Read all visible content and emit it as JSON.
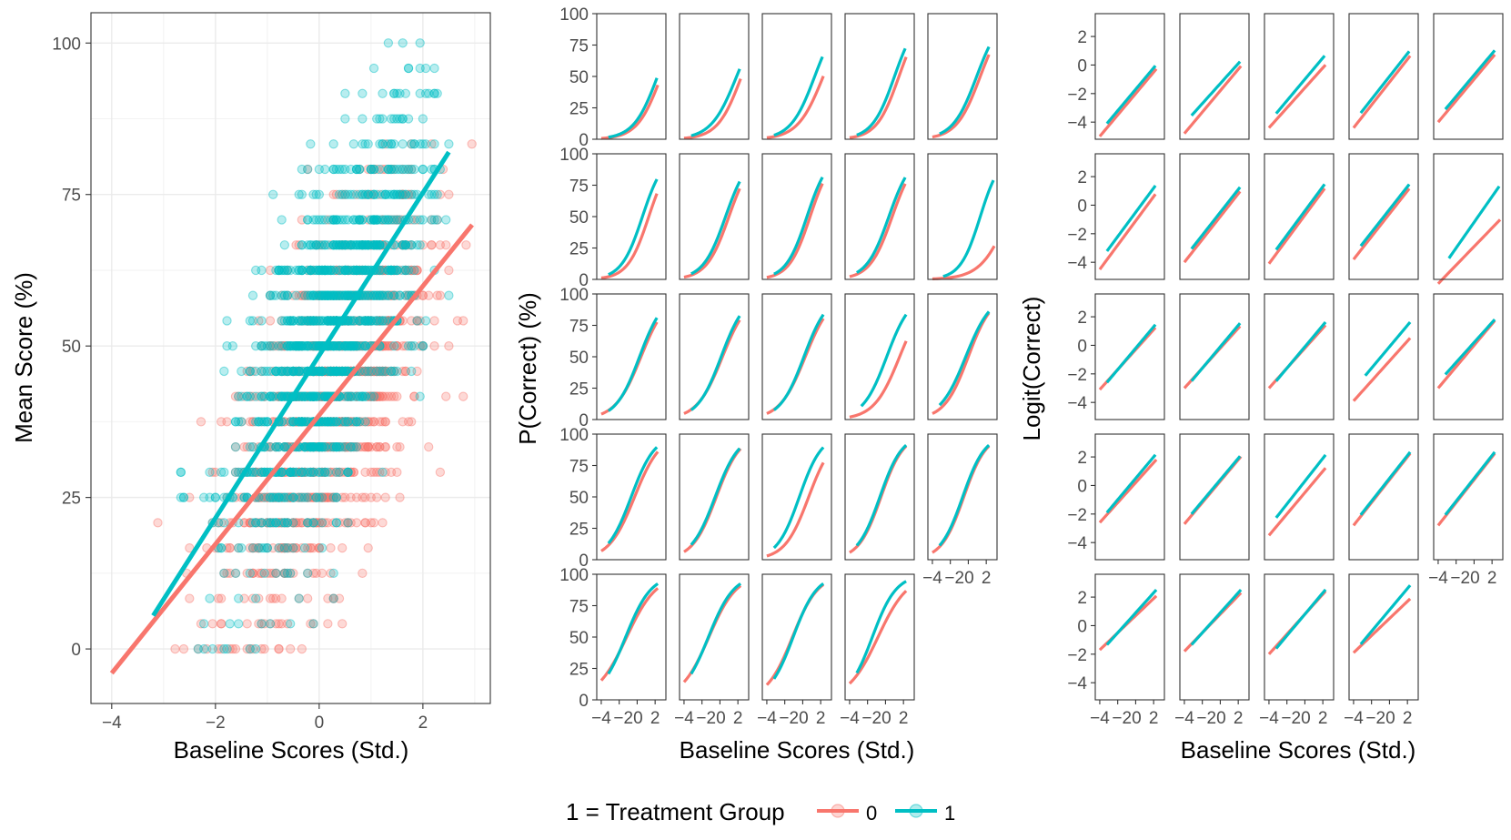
{
  "legend": {
    "title": "1 = Treatment Group",
    "entries": [
      {
        "label": "0",
        "color": "#F8766D"
      },
      {
        "label": "1",
        "color": "#00BFC4"
      }
    ]
  },
  "chart_data": [
    {
      "type": "scatter",
      "panel": "left",
      "xlabel": "Baseline Scores (Std.)",
      "ylabel": "Mean Score (%)",
      "xlim": [
        -4.4,
        3.3
      ],
      "ylim": [
        -9,
        105
      ],
      "xticks": [
        "-4",
        "-2",
        "0",
        "2"
      ],
      "xtick_values": [
        -4,
        -2,
        0,
        2
      ],
      "yticks": [
        "0",
        "25",
        "50",
        "75",
        "100"
      ],
      "ytick_values": [
        0,
        25,
        50,
        75,
        100
      ],
      "grid": true,
      "points_note": "Dense semi-transparent points at discrete score levels (multiples of ~4.17%), control spread roughly x -4 to 3, treatment roughly x -3.2 to 2.5",
      "fit_lines": [
        {
          "name": "0",
          "color": "#F8766D",
          "x": [
            -4.0,
            2.95
          ],
          "y": [
            -4,
            70
          ]
        },
        {
          "name": "1",
          "color": "#00BFC4",
          "x": [
            -3.2,
            2.5
          ],
          "y": [
            5.5,
            82
          ]
        }
      ]
    },
    {
      "type": "line",
      "panel": "middle",
      "xlabel": "Baseline Scores (Std.)",
      "ylabel": "P(Correct) (%)",
      "facets": 24,
      "layout": "5 columns x 5 rows (last row has 4 panels)",
      "xlim": [
        -4.5,
        3.2
      ],
      "ylim": [
        0,
        100
      ],
      "xticks": [
        "-4",
        "-2",
        "0",
        "2"
      ],
      "xtick_values": [
        -4,
        -2,
        0,
        2
      ],
      "yticks": [
        "0",
        "25",
        "50",
        "75",
        "100"
      ],
      "ytick_values": [
        0,
        25,
        50,
        75,
        100
      ],
      "series_names": [
        "0",
        "1"
      ],
      "curves": {
        "0": [
          {
            "a": -2.0,
            "b": 0.75,
            "x0": -4.0,
            "x1": 2.3
          },
          {
            "a": -1.8,
            "b": 0.75,
            "x0": -4.0,
            "x1": 2.3
          },
          {
            "a": -1.6,
            "b": 0.7,
            "x0": -4.0,
            "x1": 2.3
          },
          {
            "a": -1.2,
            "b": 0.8,
            "x0": -4.0,
            "x1": 2.3
          },
          {
            "a": -1.0,
            "b": 0.75,
            "x0": -4.0,
            "x1": 2.3
          },
          {
            "a": -1.1,
            "b": 0.85,
            "x0": -4.0,
            "x1": 2.2
          },
          {
            "a": -0.8,
            "b": 0.8,
            "x0": -4.0,
            "x1": 2.2
          },
          {
            "a": -0.7,
            "b": 0.85,
            "x0": -4.0,
            "x1": 2.2
          },
          {
            "a": -0.6,
            "b": 0.8,
            "x0": -4.0,
            "x1": 2.2
          },
          {
            "a": -2.9,
            "b": 0.65,
            "x0": -4.0,
            "x1": 2.9
          },
          {
            "a": -0.3,
            "b": 0.7,
            "x0": -4.0,
            "x1": 2.2
          },
          {
            "a": -0.2,
            "b": 0.7,
            "x0": -4.0,
            "x1": 2.2
          },
          {
            "a": -0.2,
            "b": 0.7,
            "x0": -4.0,
            "x1": 2.3
          },
          {
            "a": -1.1,
            "b": 0.7,
            "x0": -4.0,
            "x1": 2.3
          },
          {
            "a": 0.0,
            "b": 0.75,
            "x0": -4.0,
            "x1": 2.3
          },
          {
            "a": 0.2,
            "b": 0.7,
            "x0": -4.0,
            "x1": 2.3
          },
          {
            "a": 0.3,
            "b": 0.75,
            "x0": -4.0,
            "x1": 2.3
          },
          {
            "a": -0.5,
            "b": 0.75,
            "x0": -4.0,
            "x1": 2.3
          },
          {
            "a": 0.4,
            "b": 0.8,
            "x0": -4.0,
            "x1": 2.3
          },
          {
            "a": 0.4,
            "b": 0.8,
            "x0": -4.0,
            "x1": 2.3
          },
          {
            "a": 0.7,
            "b": 0.6,
            "x0": -4.0,
            "x1": 2.3
          },
          {
            "a": 0.8,
            "b": 0.65,
            "x0": -4.0,
            "x1": 2.3
          },
          {
            "a": 0.8,
            "b": 0.7,
            "x0": -4.0,
            "x1": 2.3
          },
          {
            "a": 0.5,
            "b": 0.6,
            "x0": -4.0,
            "x1": 2.3
          }
        ],
        "1": [
          {
            "a": -1.7,
            "b": 0.75,
            "x0": -3.2,
            "x1": 2.2
          },
          {
            "a": -1.3,
            "b": 0.7,
            "x0": -3.2,
            "x1": 2.2
          },
          {
            "a": -1.0,
            "b": 0.75,
            "x0": -3.2,
            "x1": 2.2
          },
          {
            "a": -0.8,
            "b": 0.8,
            "x0": -3.2,
            "x1": 2.2
          },
          {
            "a": -0.7,
            "b": 0.75,
            "x0": -3.2,
            "x1": 2.3
          },
          {
            "a": -0.5,
            "b": 0.85,
            "x0": -3.2,
            "x1": 2.2
          },
          {
            "a": -0.5,
            "b": 0.8,
            "x0": -3.2,
            "x1": 2.2
          },
          {
            "a": -0.4,
            "b": 0.85,
            "x0": -3.2,
            "x1": 2.2
          },
          {
            "a": -0.3,
            "b": 0.8,
            "x0": -3.2,
            "x1": 2.2
          },
          {
            "a": -1.2,
            "b": 0.9,
            "x0": -2.8,
            "x1": 2.8
          },
          {
            "a": -0.2,
            "b": 0.75,
            "x0": -3.2,
            "x1": 2.2
          },
          {
            "a": -0.1,
            "b": 0.75,
            "x0": -3.2,
            "x1": 2.2
          },
          {
            "a": -0.1,
            "b": 0.75,
            "x0": -3.2,
            "x1": 2.3
          },
          {
            "a": -0.1,
            "b": 0.75,
            "x0": -2.7,
            "x1": 2.3
          },
          {
            "a": 0.2,
            "b": 0.7,
            "x0": -3.2,
            "x1": 2.3
          },
          {
            "a": 0.5,
            "b": 0.75,
            "x0": -3.2,
            "x1": 2.2
          },
          {
            "a": 0.4,
            "b": 0.75,
            "x0": -3.2,
            "x1": 2.2
          },
          {
            "a": 0.3,
            "b": 0.8,
            "x0": -3.2,
            "x1": 2.3
          },
          {
            "a": 0.5,
            "b": 0.8,
            "x0": -3.2,
            "x1": 2.3
          },
          {
            "a": 0.5,
            "b": 0.8,
            "x0": -3.2,
            "x1": 2.3
          },
          {
            "a": 0.9,
            "b": 0.7,
            "x0": -3.2,
            "x1": 2.3
          },
          {
            "a": 0.9,
            "b": 0.7,
            "x0": -3.2,
            "x1": 2.3
          },
          {
            "a": 0.8,
            "b": 0.75,
            "x0": -3.2,
            "x1": 2.3
          },
          {
            "a": 1.1,
            "b": 0.75,
            "x0": -3.2,
            "x1": 2.3
          }
        ]
      }
    },
    {
      "type": "line",
      "panel": "right",
      "xlabel": "Baseline Scores (Std.)",
      "ylabel": "Logit(Correct)",
      "facets": 24,
      "layout": "5 columns x 5 rows (last row has 4 panels)",
      "xlim": [
        -4.5,
        3.2
      ],
      "ylim": [
        -5.2,
        3.6
      ],
      "xticks": [
        "-4",
        "-2",
        "0",
        "2"
      ],
      "xtick_values": [
        -4,
        -2,
        0,
        2
      ],
      "yticks": [
        "-4",
        "-2",
        "0",
        "2"
      ],
      "ytick_values": [
        -4,
        -2,
        0,
        2
      ],
      "series_names": [
        "0",
        "1"
      ],
      "note": "Same fitted models as middle panel, shown on the logit scale (straight lines)"
    }
  ]
}
